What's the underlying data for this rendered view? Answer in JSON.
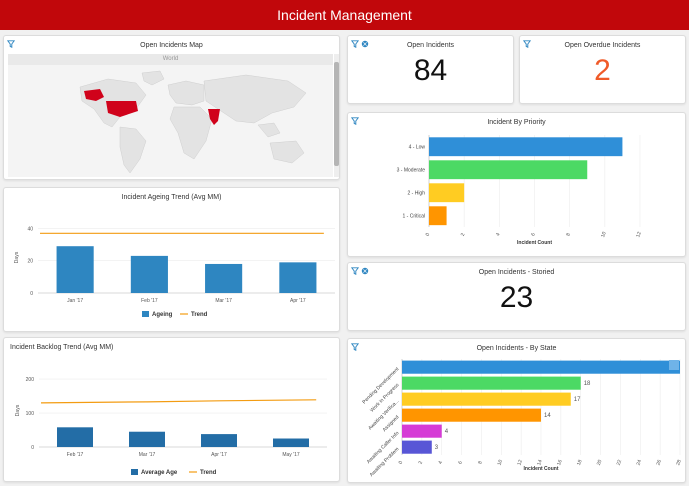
{
  "header": {
    "title": "Incident Management"
  },
  "map_card": {
    "title": "Open Incidents Map",
    "map_label": "World"
  },
  "open_incidents": {
    "title": "Open Incidents",
    "value": "84"
  },
  "overdue": {
    "title": "Open Overdue Incidents",
    "value": "2",
    "value_color": "#f05a28"
  },
  "priority": {
    "title": "Incident By Priority",
    "chart_data": {
      "type": "bar",
      "orientation": "horizontal",
      "categories": [
        "4 - Low",
        "3 - Moderate",
        "2 - High",
        "1 - Critical"
      ],
      "values": [
        11,
        9,
        2,
        1
      ],
      "colors": [
        "#2f8fd8",
        "#4cd964",
        "#ffcc22",
        "#ff9500"
      ],
      "xlabel": "Incident Count",
      "xlim": [
        0,
        12
      ],
      "xticks": [
        "0",
        "2",
        "4",
        "6",
        "8",
        "10",
        "12"
      ]
    }
  },
  "ageing": {
    "title": "Incident Ageing Trend (Avg MM)",
    "chart_data": {
      "type": "bar",
      "categories": [
        "Jan '17",
        "Feb '17",
        "Mar '17",
        "Apr '17"
      ],
      "series": [
        {
          "name": "Ageing",
          "values": [
            29,
            23,
            18,
            19
          ],
          "color": "#2e86c1"
        },
        {
          "name": "Trend",
          "values": [
            37,
            37,
            37,
            37
          ],
          "color": "#f39c12",
          "kind": "line"
        }
      ],
      "ylabel": "Days",
      "ylim": [
        0,
        44
      ],
      "yticks": [
        "0",
        "20",
        "40"
      ]
    }
  },
  "storied": {
    "title": "Open Incidents - Storied",
    "value": "23"
  },
  "backlog": {
    "title": "Incident Backlog Trend (Avg MM)",
    "chart_data": {
      "type": "bar",
      "categories": [
        "Feb '17",
        "Mar '17",
        "Apr '17",
        "May '17"
      ],
      "series": [
        {
          "name": "Average Age",
          "values": [
            58,
            45,
            38,
            25
          ],
          "color": "#236da6"
        },
        {
          "name": "Trend",
          "values": [
            130,
            133,
            136,
            139
          ],
          "color": "#f39c12",
          "kind": "line"
        }
      ],
      "ylabel": "Days",
      "ylim": [
        0,
        215
      ],
      "yticks": [
        "0",
        "100",
        "200"
      ]
    }
  },
  "by_state": {
    "title": "Open Incidents - By State",
    "chart_data": {
      "type": "bar",
      "orientation": "horizontal",
      "categories": [
        "Pending Development",
        "Work in Progress",
        "Awaiting Verifica...",
        "Assigned",
        "Awaiting Caller Info",
        "Awaiting Problem"
      ],
      "values": [
        28,
        18,
        17,
        14,
        4,
        3
      ],
      "colors": [
        "#2f8fd8",
        "#4cd964",
        "#ffcc22",
        "#ff9500",
        "#d63bd6",
        "#5856d6"
      ],
      "xlabel": "Incident Count",
      "xlim": [
        0,
        28
      ],
      "xticks": [
        "0",
        "2",
        "4",
        "6",
        "8",
        "10",
        "12",
        "14",
        "16",
        "18",
        "20",
        "22",
        "24",
        "26",
        "28"
      ]
    }
  }
}
